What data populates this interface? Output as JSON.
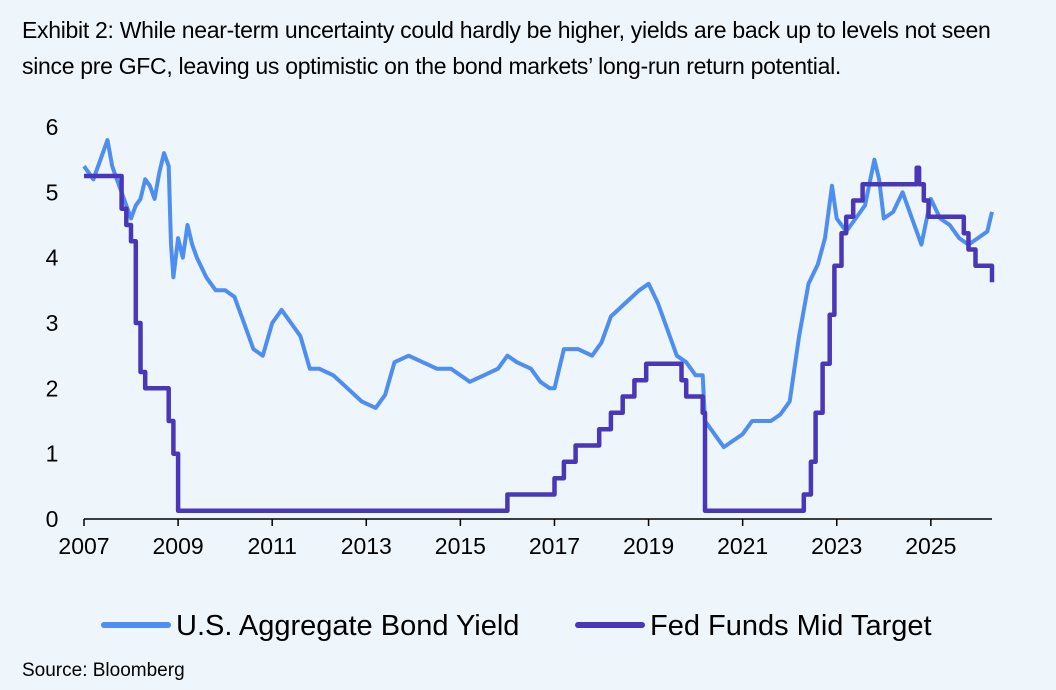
{
  "title": "Exhibit 2: While near-term uncertainty could hardly be higher, yields are back up to levels not seen since pre GFC, leaving us optimistic on the bond markets’ long-run return potential.",
  "source": "Source: Bloomberg",
  "colors": {
    "agg": "#4d8ef0",
    "fed": "#4a37b8",
    "axis": "#000000",
    "background": "#eef5fb"
  },
  "chart_data": {
    "type": "line",
    "title": "",
    "xlabel": "",
    "ylabel": "",
    "xlim": [
      2007,
      2026.3
    ],
    "ylim": [
      0,
      6
    ],
    "grid": false,
    "legend_position": "bottom",
    "x_ticks": [
      "2007",
      "2009",
      "2011",
      "2013",
      "2015",
      "2017",
      "2019",
      "2021",
      "2023",
      "2025"
    ],
    "y_ticks": [
      "0",
      "1",
      "2",
      "3",
      "4",
      "5",
      "6"
    ],
    "series": [
      {
        "name": "U.S. Aggregate Bond Yield",
        "x": [
          2007.0,
          2007.1,
          2007.2,
          2007.4,
          2007.5,
          2007.6,
          2007.7,
          2007.8,
          2008.0,
          2008.1,
          2008.2,
          2008.3,
          2008.4,
          2008.5,
          2008.6,
          2008.7,
          2008.8,
          2008.85,
          2008.9,
          2009.0,
          2009.1,
          2009.2,
          2009.3,
          2009.4,
          2009.6,
          2009.8,
          2010.0,
          2010.2,
          2010.4,
          2010.6,
          2010.8,
          2011.0,
          2011.2,
          2011.4,
          2011.6,
          2011.8,
          2012.0,
          2012.3,
          2012.6,
          2012.9,
          2013.2,
          2013.4,
          2013.6,
          2013.9,
          2014.2,
          2014.5,
          2014.8,
          2015.0,
          2015.2,
          2015.5,
          2015.8,
          2016.0,
          2016.2,
          2016.5,
          2016.7,
          2016.9,
          2017.0,
          2017.2,
          2017.5,
          2017.8,
          2018.0,
          2018.2,
          2018.5,
          2018.8,
          2019.0,
          2019.2,
          2019.4,
          2019.6,
          2019.8,
          2020.0,
          2020.15,
          2020.2,
          2020.4,
          2020.6,
          2020.8,
          2021.0,
          2021.2,
          2021.4,
          2021.6,
          2021.8,
          2022.0,
          2022.2,
          2022.4,
          2022.6,
          2022.75,
          2022.9,
          2023.0,
          2023.2,
          2023.4,
          2023.6,
          2023.8,
          2023.9,
          2024.0,
          2024.2,
          2024.4,
          2024.6,
          2024.8,
          2025.0,
          2025.2,
          2025.4,
          2025.6,
          2025.8,
          2026.0,
          2026.2,
          2026.3
        ],
        "values": [
          5.4,
          5.3,
          5.2,
          5.6,
          5.8,
          5.4,
          5.2,
          5.0,
          4.6,
          4.8,
          4.9,
          5.2,
          5.1,
          4.9,
          5.3,
          5.6,
          5.4,
          4.2,
          3.7,
          4.3,
          4.0,
          4.5,
          4.2,
          4.0,
          3.7,
          3.5,
          3.5,
          3.4,
          3.0,
          2.6,
          2.5,
          3.0,
          3.2,
          3.0,
          2.8,
          2.3,
          2.3,
          2.2,
          2.0,
          1.8,
          1.7,
          1.9,
          2.4,
          2.5,
          2.4,
          2.3,
          2.3,
          2.2,
          2.1,
          2.2,
          2.3,
          2.5,
          2.4,
          2.3,
          2.1,
          2.0,
          2.0,
          2.6,
          2.6,
          2.5,
          2.7,
          3.1,
          3.3,
          3.5,
          3.6,
          3.3,
          2.9,
          2.5,
          2.4,
          2.2,
          2.2,
          1.5,
          1.3,
          1.1,
          1.2,
          1.3,
          1.5,
          1.5,
          1.5,
          1.6,
          1.8,
          2.8,
          3.6,
          3.9,
          4.3,
          5.1,
          4.6,
          4.4,
          4.6,
          4.8,
          5.5,
          5.2,
          4.6,
          4.7,
          5.0,
          4.6,
          4.2,
          4.9,
          4.6,
          4.5,
          4.3,
          4.2,
          4.3,
          4.4,
          4.7
        ]
      },
      {
        "name": "Fed Funds Mid Target",
        "x": [
          2007.0,
          2007.7,
          2007.8,
          2007.9,
          2008.0,
          2008.1,
          2008.2,
          2008.3,
          2008.5,
          2008.8,
          2008.9,
          2009.0,
          2015.95,
          2016.0,
          2016.95,
          2017.0,
          2017.2,
          2017.45,
          2017.95,
          2018.2,
          2018.45,
          2018.7,
          2018.95,
          2019.55,
          2019.7,
          2019.8,
          2020.15,
          2020.2,
          2022.2,
          2022.3,
          2022.45,
          2022.55,
          2022.7,
          2022.85,
          2022.95,
          2023.1,
          2023.2,
          2023.35,
          2023.55,
          2024.7,
          2024.75,
          2024.85,
          2024.95,
          2025.7,
          2025.75,
          2025.8,
          2025.95,
          2026.3
        ],
        "values": [
          5.25,
          5.25,
          4.75,
          4.5,
          4.25,
          3.0,
          2.25,
          2.0,
          2.0,
          1.5,
          1.0,
          0.125,
          0.125,
          0.375,
          0.375,
          0.625,
          0.875,
          1.125,
          1.375,
          1.625,
          1.875,
          2.125,
          2.375,
          2.375,
          2.125,
          1.875,
          1.625,
          0.125,
          0.125,
          0.375,
          0.875,
          1.625,
          2.375,
          3.125,
          3.875,
          4.375,
          4.625,
          4.875,
          5.125,
          5.375,
          5.125,
          4.875,
          4.625,
          4.375,
          4.375,
          4.125,
          3.875,
          3.625
        ]
      }
    ]
  }
}
